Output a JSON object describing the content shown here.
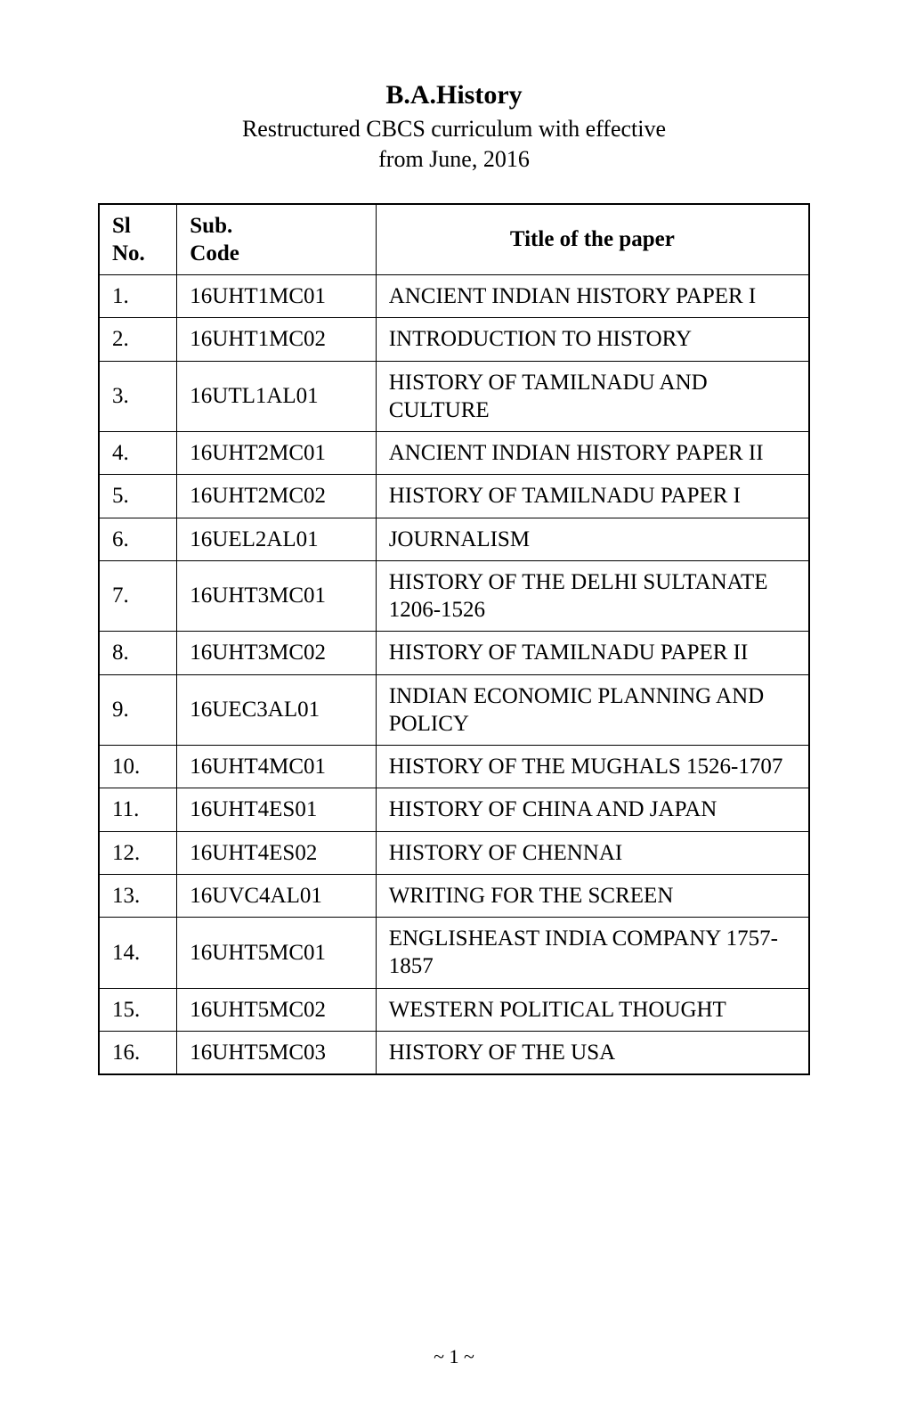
{
  "header": {
    "title": "B.A.History",
    "subtitle_line1": "Restructured CBCS curriculum with effective",
    "subtitle_line2": "from June, 2016"
  },
  "table": {
    "columns": {
      "slno_line1": "Sl",
      "slno_line2": "No.",
      "code_line1": "Sub.",
      "code_line2": "Code",
      "title": "Title of the paper"
    },
    "rows": [
      {
        "slno": "1.",
        "code": "16UHT1MC01",
        "title": "ANCIENT INDIAN HISTORY PAPER I"
      },
      {
        "slno": "2.",
        "code": "16UHT1MC02",
        "title": "INTRODUCTION TO HISTORY"
      },
      {
        "slno": "3.",
        "code": "16UTL1AL01",
        "title": "HISTORY OF TAMILNADU AND CULTURE"
      },
      {
        "slno": "4.",
        "code": "16UHT2MC01",
        "title": "ANCIENT INDIAN HISTORY PAPER II"
      },
      {
        "slno": "5.",
        "code": "16UHT2MC02",
        "title": "HISTORY OF TAMILNADU PAPER I"
      },
      {
        "slno": "6.",
        "code": "16UEL2AL01",
        "title": "JOURNALISM"
      },
      {
        "slno": "7.",
        "code": "16UHT3MC01",
        "title": "HISTORY OF THE DELHI SULTANATE 1206-1526"
      },
      {
        "slno": "8.",
        "code": "16UHT3MC02",
        "title": "HISTORY OF TAMILNADU PAPER II"
      },
      {
        "slno": "9.",
        "code": "16UEC3AL01",
        "title": "INDIAN ECONOMIC PLANNING AND POLICY"
      },
      {
        "slno": "10.",
        "code": "16UHT4MC01",
        "title": "HISTORY OF THE MUGHALS 1526-1707"
      },
      {
        "slno": "11.",
        "code": "16UHT4ES01",
        "title": "HISTORY OF CHINA AND JAPAN"
      },
      {
        "slno": "12.",
        "code": "16UHT4ES02",
        "title": "HISTORY OF CHENNAI"
      },
      {
        "slno": "13.",
        "code": "16UVC4AL01",
        "title": "WRITING FOR THE SCREEN"
      },
      {
        "slno": "14.",
        "code": "16UHT5MC01",
        "title": "ENGLISHEAST INDIA COMPANY 1757-1857"
      },
      {
        "slno": "15.",
        "code": "16UHT5MC02",
        "title": "WESTERN POLITICAL THOUGHT"
      },
      {
        "slno": "16.",
        "code": "16UHT5MC03",
        "title": "HISTORY OF THE USA"
      }
    ]
  },
  "footer": {
    "page_number": "~ 1 ~"
  }
}
